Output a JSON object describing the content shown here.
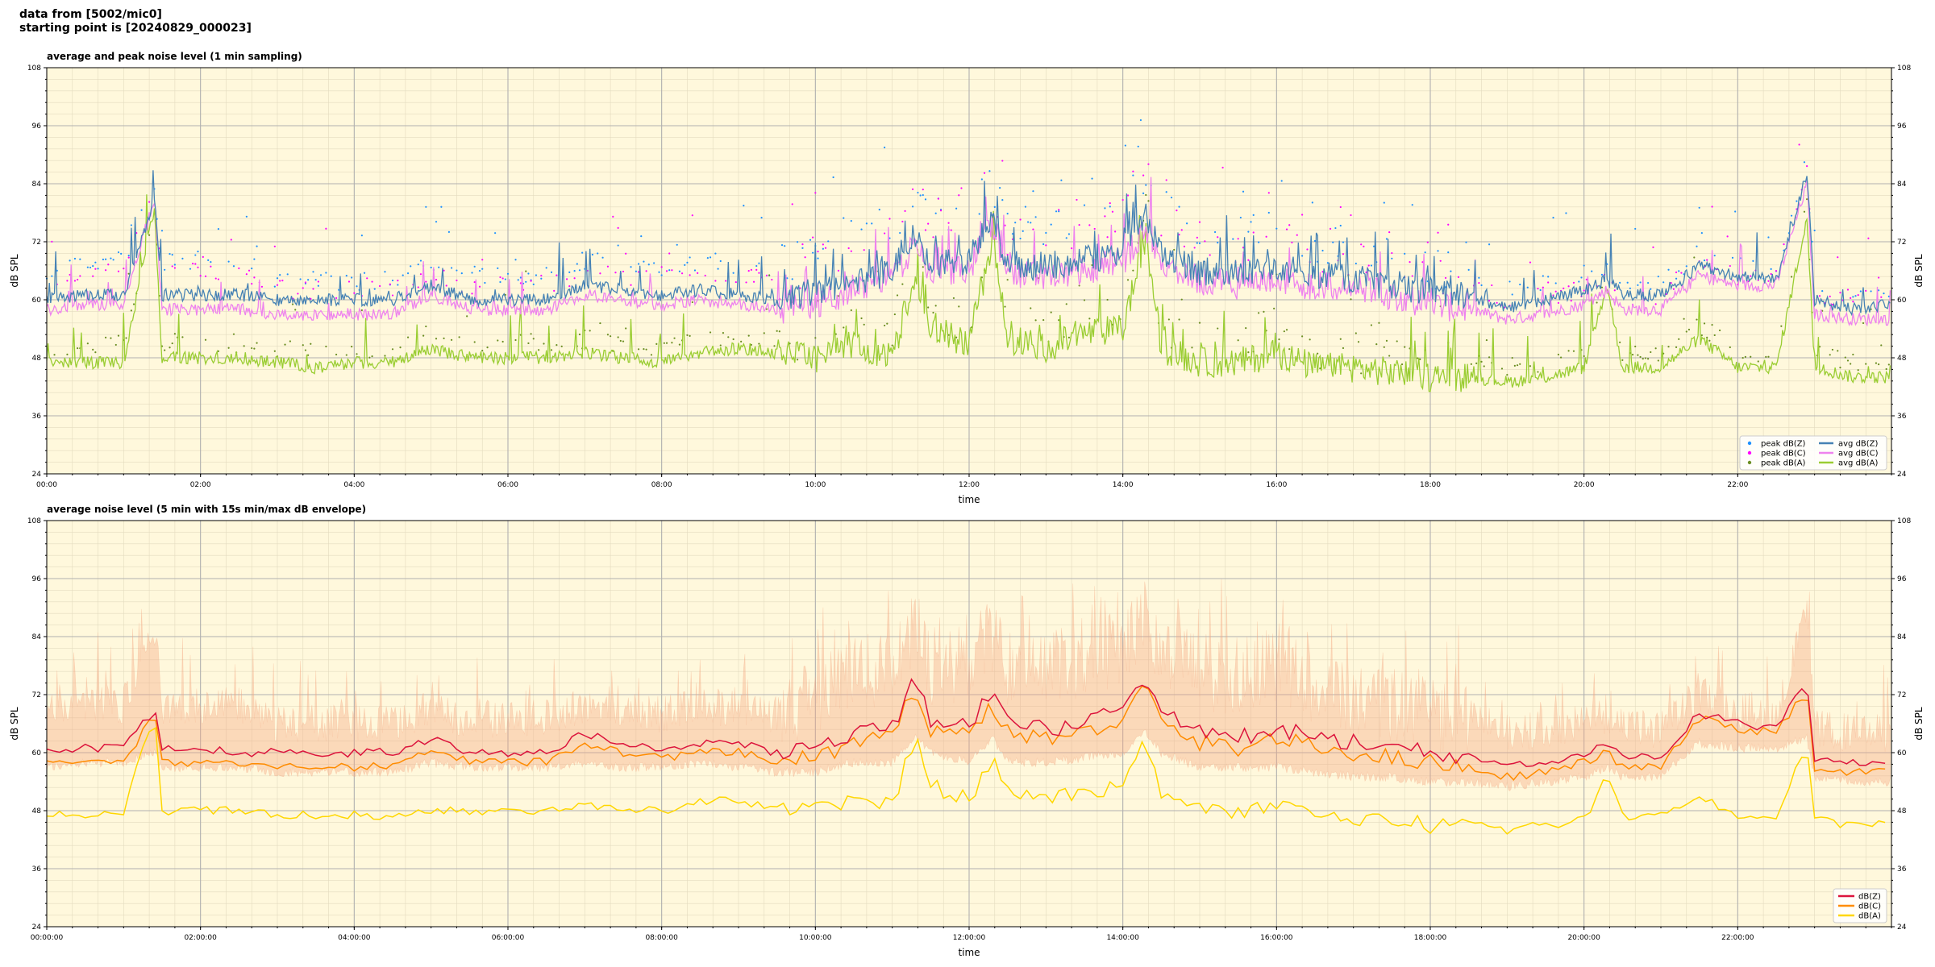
{
  "header": {
    "line1": "data from [5002/mic0]",
    "line2": "starting point is [20240829_000023]"
  },
  "colors": {
    "background": "#fff8dc",
    "z_line": "#4682b4",
    "z_peak": "#1e90ff",
    "c_line": "#ee82ee",
    "c_peak": "#ff00ff",
    "a_line": "#9acd32",
    "a_peak": "#6b8e23",
    "dbz5": "#dc143c",
    "dbc5": "#ff8c00",
    "dba5": "#ffd700",
    "envelope": "#f4a582"
  },
  "chart_data": [
    {
      "type": "line",
      "title": "average and peak noise level (1 min sampling)",
      "xlabel": "time",
      "ylabel": "dB SPL",
      "xlim": [
        0,
        24
      ],
      "ylim": [
        24,
        108
      ],
      "yticks": [
        "24",
        "36",
        "48",
        "60",
        "72",
        "84",
        "96",
        "108"
      ],
      "xticks": [
        "00:00",
        "02:00",
        "04:00",
        "06:00",
        "08:00",
        "10:00",
        "12:00",
        "14:00",
        "16:00",
        "18:00",
        "20:00",
        "22:00"
      ],
      "grid": true,
      "legend": "lower-right",
      "x": [
        0,
        0.5,
        1,
        1.4,
        1.5,
        2,
        2.5,
        3,
        3.5,
        4,
        4.5,
        5,
        5.5,
        6,
        6.5,
        7,
        7.5,
        8,
        8.5,
        9,
        9.5,
        10,
        10.5,
        11,
        11.3,
        11.5,
        12,
        12.3,
        12.5,
        13,
        13.5,
        14,
        14.3,
        14.5,
        15,
        15.5,
        16,
        16.5,
        17,
        17.5,
        18,
        18.5,
        19,
        19.5,
        20,
        20.3,
        20.5,
        21,
        21.5,
        22,
        22.5,
        22.9,
        23,
        23.5,
        24
      ],
      "series": [
        {
          "name": "avg dB(Z)",
          "values": [
            60,
            61,
            61,
            81,
            61,
            61,
            61,
            60,
            60,
            60,
            60,
            63,
            60,
            60,
            60,
            63,
            62,
            61,
            62,
            61,
            60,
            62,
            64,
            66,
            74,
            68,
            68,
            78,
            67,
            67,
            68,
            70,
            77,
            70,
            66,
            66,
            67,
            65,
            64,
            63,
            62,
            61,
            58,
            60,
            62,
            64,
            61,
            61,
            67,
            65,
            64,
            86,
            60,
            58,
            59
          ]
        },
        {
          "name": "avg dB(C)",
          "values": [
            58,
            59,
            59,
            81,
            58,
            58,
            58,
            57,
            57,
            57,
            57,
            61,
            58,
            58,
            58,
            61,
            60,
            59,
            60,
            59,
            58,
            59,
            62,
            64,
            72,
            66,
            66,
            76,
            65,
            65,
            66,
            68,
            75,
            68,
            64,
            63,
            64,
            63,
            62,
            61,
            59,
            58,
            56,
            57,
            59,
            62,
            58,
            58,
            65,
            63,
            63,
            84,
            57,
            56,
            56
          ]
        },
        {
          "name": "avg dB(A)",
          "values": [
            47,
            47,
            47,
            79,
            48,
            48,
            48,
            47,
            46,
            47,
            47,
            50,
            48,
            48,
            48,
            49,
            48,
            47,
            49,
            50,
            49,
            48,
            51,
            48,
            66,
            55,
            50,
            72,
            52,
            50,
            53,
            54,
            73,
            50,
            47,
            47,
            49,
            46,
            46,
            45,
            44,
            44,
            43,
            44,
            46,
            63,
            46,
            46,
            52,
            46,
            46,
            77,
            46,
            44,
            44
          ]
        },
        {
          "name": "peak dB(Z)",
          "values": [
            65,
            68,
            68,
            84,
            68,
            68,
            68,
            64,
            64,
            64,
            64,
            67,
            65,
            65,
            65,
            68,
            67,
            66,
            68,
            67,
            66,
            70,
            74,
            76,
            82,
            75,
            77,
            84,
            75,
            75,
            77,
            80,
            86,
            79,
            74,
            74,
            76,
            72,
            70,
            68,
            66,
            65,
            62,
            63,
            64,
            66,
            63,
            63,
            70,
            67,
            66,
            88,
            63,
            62,
            62
          ]
        },
        {
          "name": "peak dB(C)",
          "values": [
            63,
            66,
            66,
            84,
            66,
            66,
            66,
            62,
            62,
            62,
            62,
            65,
            63,
            63,
            63,
            66,
            65,
            64,
            66,
            65,
            64,
            68,
            72,
            74,
            80,
            73,
            75,
            82,
            73,
            73,
            75,
            78,
            84,
            77,
            72,
            72,
            74,
            70,
            68,
            66,
            64,
            63,
            60,
            61,
            62,
            64,
            61,
            61,
            68,
            65,
            64,
            86,
            61,
            60,
            60
          ]
        },
        {
          "name": "peak dB(A)",
          "values": [
            50,
            51,
            51,
            80,
            51,
            51,
            51,
            50,
            49,
            50,
            50,
            53,
            51,
            51,
            51,
            52,
            51,
            50,
            52,
            53,
            52,
            51,
            55,
            54,
            68,
            58,
            54,
            74,
            56,
            54,
            57,
            58,
            76,
            55,
            51,
            51,
            53,
            50,
            49,
            48,
            47,
            47,
            46,
            47,
            49,
            65,
            49,
            49,
            55,
            49,
            49,
            79,
            49,
            47,
            47
          ]
        }
      ]
    },
    {
      "type": "line",
      "title": "average noise level (5 min with 15s min/max dB envelope)",
      "xlabel": "time",
      "ylabel": "dB SPL",
      "xlim": [
        0,
        24
      ],
      "ylim": [
        24,
        108
      ],
      "yticks": [
        "24",
        "36",
        "48",
        "60",
        "72",
        "84",
        "96",
        "108"
      ],
      "xticks": [
        "00:00:00",
        "02:00:00",
        "04:00:00",
        "06:00:00",
        "08:00:00",
        "10:00:00",
        "12:00:00",
        "14:00:00",
        "16:00:00",
        "18:00:00",
        "20:00:00",
        "22:00:00"
      ],
      "grid": true,
      "legend": "lower-right",
      "x": [
        0,
        0.5,
        1,
        1.4,
        1.5,
        2,
        2.5,
        3,
        3.5,
        4,
        4.5,
        5,
        5.5,
        6,
        6.5,
        7,
        7.5,
        8,
        8.5,
        9,
        9.5,
        10,
        10.5,
        11,
        11.3,
        11.5,
        12,
        12.3,
        12.5,
        13,
        13.5,
        14,
        14.3,
        14.5,
        15,
        15.5,
        16,
        16.5,
        17,
        17.5,
        18,
        18.5,
        19,
        19.5,
        20,
        20.3,
        20.5,
        21,
        21.5,
        22,
        22.5,
        22.9,
        23,
        23.5,
        24
      ],
      "envelope_max": [
        68,
        70,
        70,
        86,
        70,
        70,
        70,
        66,
        66,
        66,
        66,
        69,
        67,
        67,
        67,
        70,
        69,
        68,
        70,
        69,
        68,
        72,
        76,
        78,
        86,
        77,
        79,
        84,
        77,
        77,
        79,
        82,
        88,
        81,
        76,
        76,
        78,
        74,
        72,
        70,
        68,
        67,
        64,
        65,
        66,
        68,
        65,
        65,
        72,
        69,
        68,
        88,
        65,
        64,
        64
      ],
      "envelope_min": [
        57,
        58,
        58,
        60,
        57,
        57,
        57,
        56,
        56,
        56,
        56,
        58,
        57,
        57,
        57,
        58,
        57,
        57,
        58,
        57,
        56,
        56,
        58,
        58,
        63,
        60,
        58,
        63,
        58,
        58,
        59,
        60,
        64,
        60,
        57,
        57,
        57,
        56,
        55,
        55,
        54,
        54,
        53,
        54,
        55,
        57,
        55,
        55,
        62,
        61,
        61,
        63,
        55,
        54,
        54
      ],
      "series": [
        {
          "name": "dB(Z)",
          "values": [
            60,
            61,
            61,
            69,
            61,
            61,
            60,
            60,
            60,
            60,
            60,
            63,
            60,
            60,
            60,
            64,
            62,
            61,
            62,
            62,
            60,
            62,
            64,
            65,
            76,
            67,
            66,
            72,
            66,
            65,
            66,
            69,
            76,
            68,
            64,
            63,
            65,
            63,
            62,
            61,
            60,
            59,
            57,
            58,
            60,
            62,
            59,
            59,
            68,
            66,
            65,
            75,
            58,
            58,
            58
          ]
        },
        {
          "name": "dB(C)",
          "values": [
            58,
            58,
            58,
            68,
            58,
            58,
            58,
            57,
            57,
            57,
            57,
            61,
            58,
            58,
            58,
            62,
            60,
            59,
            60,
            60,
            58,
            59,
            62,
            63,
            74,
            65,
            64,
            70,
            64,
            63,
            64,
            67,
            74,
            66,
            62,
            61,
            63,
            61,
            60,
            59,
            58,
            57,
            55,
            56,
            58,
            60,
            57,
            57,
            67,
            65,
            64,
            73,
            56,
            56,
            56
          ]
        },
        {
          "name": "dB(A)",
          "values": [
            47,
            47,
            48,
            68,
            48,
            48,
            48,
            47,
            47,
            47,
            47,
            48,
            48,
            48,
            48,
            49,
            48,
            48,
            50,
            50,
            49,
            48,
            50,
            49,
            64,
            53,
            50,
            58,
            52,
            50,
            52,
            53,
            63,
            51,
            48,
            48,
            49,
            47,
            46,
            46,
            45,
            45,
            44,
            45,
            46,
            55,
            47,
            47,
            51,
            47,
            47,
            62,
            46,
            45,
            45
          ]
        }
      ]
    }
  ]
}
